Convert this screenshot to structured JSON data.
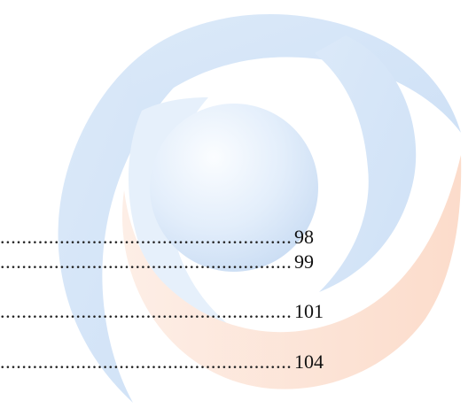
{
  "toc": {
    "leader": "................................................................................................",
    "entries": [
      {
        "page": "98"
      },
      {
        "page": "99"
      },
      {
        "page": "101"
      },
      {
        "page": "104"
      }
    ]
  },
  "watermark": {
    "icon": "swirl-logo-watermark",
    "colors": {
      "blue": "#d5e6f8",
      "orange": "#fde6da",
      "sphere_light": "#f3f8fe",
      "sphere_dark": "#cfe0f5"
    }
  }
}
